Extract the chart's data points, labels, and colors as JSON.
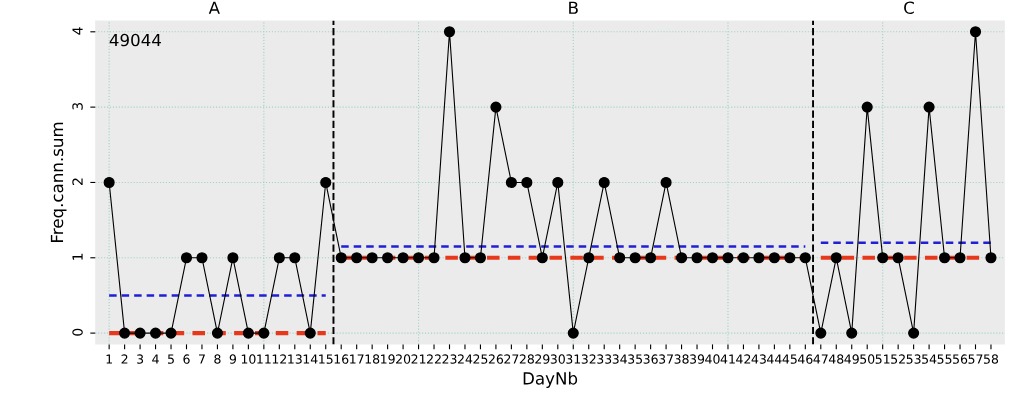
{
  "chart_data": {
    "type": "line",
    "xlabel": "DayNb",
    "ylabel": "Freq.cann.sum",
    "x": [
      1,
      2,
      3,
      4,
      5,
      6,
      7,
      8,
      9,
      10,
      11,
      12,
      13,
      14,
      15,
      16,
      17,
      18,
      19,
      20,
      21,
      22,
      23,
      24,
      25,
      26,
      27,
      28,
      29,
      30,
      31,
      32,
      33,
      34,
      35,
      36,
      37,
      38,
      39,
      40,
      41,
      42,
      43,
      44,
      45,
      46,
      47,
      48,
      49,
      50,
      51,
      52,
      53,
      54,
      55,
      56,
      57,
      58
    ],
    "xlim": [
      0.1,
      58.9
    ],
    "xticks": [
      1,
      2,
      3,
      4,
      5,
      6,
      7,
      8,
      9,
      10,
      11,
      12,
      13,
      14,
      15,
      16,
      17,
      18,
      19,
      20,
      21,
      22,
      23,
      24,
      25,
      26,
      27,
      28,
      29,
      30,
      31,
      32,
      33,
      34,
      35,
      36,
      37,
      38,
      39,
      40,
      41,
      42,
      43,
      44,
      45,
      46,
      47,
      48,
      49,
      50,
      51,
      52,
      53,
      54,
      55,
      56,
      57,
      58
    ],
    "series": [
      {
        "color": "#000000",
        "marker": "circle",
        "line_style": "solid",
        "values": [
          2,
          0,
          0,
          0,
          0,
          1,
          1,
          0,
          1,
          0,
          0,
          1,
          1,
          0,
          2,
          1,
          1,
          1,
          1,
          1,
          1,
          1,
          4,
          1,
          1,
          3,
          2,
          2,
          1,
          2,
          0,
          1,
          2,
          1,
          1,
          1,
          2,
          1,
          1,
          1,
          1,
          1,
          1,
          1,
          1,
          1,
          0,
          1,
          0,
          3,
          1,
          1,
          0,
          3,
          1,
          1,
          4,
          1
        ]
      },
      {
        "color": "#1f1fd6",
        "marker": "none",
        "line_style": "dashed",
        "values": [
          0.5,
          0.5,
          0.5,
          0.5,
          0.5,
          0.5,
          0.5,
          0.5,
          0.5,
          0.5,
          0.5,
          0.5,
          0.5,
          0.5,
          0.5,
          null,
          null,
          null,
          null,
          null,
          null,
          null,
          null,
          null,
          null,
          null,
          null,
          null,
          null,
          null,
          null,
          null,
          null,
          null,
          null,
          null,
          null,
          null,
          null,
          null,
          null,
          null,
          null,
          null,
          null,
          null,
          null,
          null,
          null,
          null,
          null,
          null,
          null,
          null,
          null,
          null,
          null,
          null
        ]
      },
      {
        "color": "#1f1fd6",
        "marker": "none",
        "line_style": "dashed",
        "values": [
          null,
          null,
          null,
          null,
          null,
          null,
          null,
          null,
          null,
          null,
          null,
          null,
          null,
          null,
          null,
          1.15,
          1.15,
          1.15,
          1.15,
          1.15,
          1.15,
          1.15,
          1.15,
          1.15,
          1.15,
          1.15,
          1.15,
          1.15,
          1.15,
          1.15,
          1.15,
          1.15,
          1.15,
          1.15,
          1.15,
          1.15,
          1.15,
          1.15,
          1.15,
          1.15,
          1.15,
          1.15,
          1.15,
          1.15,
          1.15,
          1.15,
          null,
          null,
          null,
          null,
          null,
          null,
          null,
          null,
          null,
          null,
          null,
          null
        ]
      },
      {
        "color": "#1f1fd6",
        "marker": "none",
        "line_style": "dashed",
        "values": [
          null,
          null,
          null,
          null,
          null,
          null,
          null,
          null,
          null,
          null,
          null,
          null,
          null,
          null,
          null,
          null,
          null,
          null,
          null,
          null,
          null,
          null,
          null,
          null,
          null,
          null,
          null,
          null,
          null,
          null,
          null,
          null,
          null,
          null,
          null,
          null,
          null,
          null,
          null,
          null,
          null,
          null,
          null,
          null,
          null,
          null,
          1.2,
          1.2,
          1.2,
          1.2,
          1.2,
          1.2,
          1.2,
          1.2,
          1.2,
          1.2,
          1.2,
          1.2
        ]
      },
      {
        "color": "#e8381c",
        "marker": "none",
        "line_style": "dashed",
        "values": [
          0,
          0,
          0,
          0,
          0,
          0,
          0,
          0,
          0,
          0,
          0,
          0,
          0,
          0,
          0,
          null,
          null,
          null,
          null,
          null,
          null,
          null,
          null,
          null,
          null,
          null,
          null,
          null,
          null,
          null,
          null,
          null,
          null,
          null,
          null,
          null,
          null,
          null,
          null,
          null,
          null,
          null,
          null,
          null,
          null,
          null,
          null,
          null,
          null,
          null,
          null,
          null,
          null,
          null,
          null,
          null,
          null,
          null
        ]
      },
      {
        "color": "#e8381c",
        "marker": "none",
        "line_style": "dashed",
        "values": [
          null,
          null,
          null,
          null,
          null,
          null,
          null,
          null,
          null,
          null,
          null,
          null,
          null,
          null,
          null,
          1,
          1,
          1,
          1,
          1,
          1,
          1,
          1,
          1,
          1,
          1,
          1,
          1,
          1,
          1,
          1,
          1,
          1,
          1,
          1,
          1,
          1,
          1,
          1,
          1,
          1,
          1,
          1,
          1,
          1,
          1,
          null,
          null,
          null,
          null,
          null,
          null,
          null,
          null,
          null,
          null,
          null,
          null
        ]
      },
      {
        "color": "#e8381c",
        "marker": "none",
        "line_style": "dashed",
        "values": [
          null,
          null,
          null,
          null,
          null,
          null,
          null,
          null,
          null,
          null,
          null,
          null,
          null,
          null,
          null,
          null,
          null,
          null,
          null,
          null,
          null,
          null,
          null,
          null,
          null,
          null,
          null,
          null,
          null,
          null,
          null,
          null,
          null,
          null,
          null,
          null,
          null,
          null,
          null,
          null,
          null,
          null,
          null,
          null,
          null,
          null,
          1,
          1,
          1,
          1,
          1,
          1,
          1,
          1,
          1,
          1,
          1,
          1
        ]
      }
    ],
    "ylim": [
      -0.15,
      4.15
    ],
    "yticks": [
      0,
      1,
      2,
      3,
      4
    ],
    "grid": true,
    "ref_lines": [
      {
        "axis": "x",
        "value": 15.5,
        "line_style": "dashed",
        "color": "#000000"
      },
      {
        "axis": "x",
        "value": 46.5,
        "line_style": "dashed",
        "color": "#000000"
      }
    ],
    "annotations": [
      "49044",
      "A",
      "B",
      "C"
    ]
  }
}
